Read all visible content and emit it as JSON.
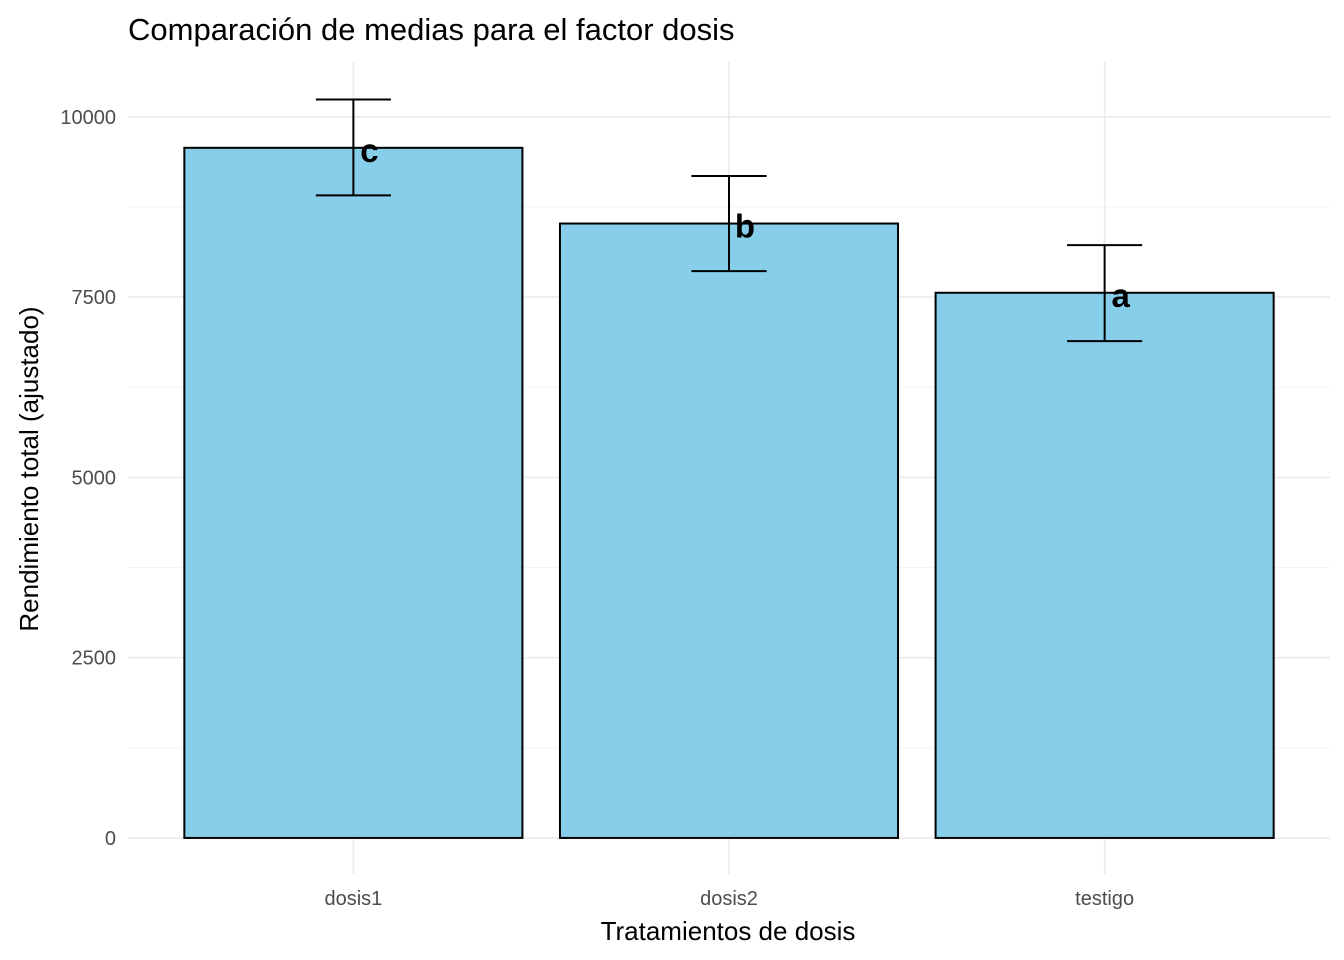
{
  "chart_data": {
    "type": "bar",
    "title": "Comparación de medias para el factor dosis",
    "xlabel": "Tratamientos de dosis",
    "ylabel": "Rendimiento total (ajustado)",
    "categories": [
      "dosis1",
      "dosis2",
      "testigo"
    ],
    "values": [
      9570,
      8520,
      7560
    ],
    "error_bars": [
      {
        "low": 8910,
        "high": 10240
      },
      {
        "low": 7860,
        "high": 9180
      },
      {
        "low": 6890,
        "high": 8220
      }
    ],
    "group_letters": [
      "c",
      "b",
      "a"
    ],
    "ylim": [
      -500,
      10760
    ],
    "y_ticks": [
      0,
      2500,
      5000,
      7500,
      10000
    ],
    "y_tick_labels": [
      "0",
      "2500",
      "5000",
      "7500",
      "10000"
    ],
    "grid": true,
    "legend": "none",
    "colors": {
      "bar_fill": "#87CEEB",
      "bar_outline": "#000000",
      "grid": "#ebebeb",
      "background": "#ffffff"
    }
  }
}
